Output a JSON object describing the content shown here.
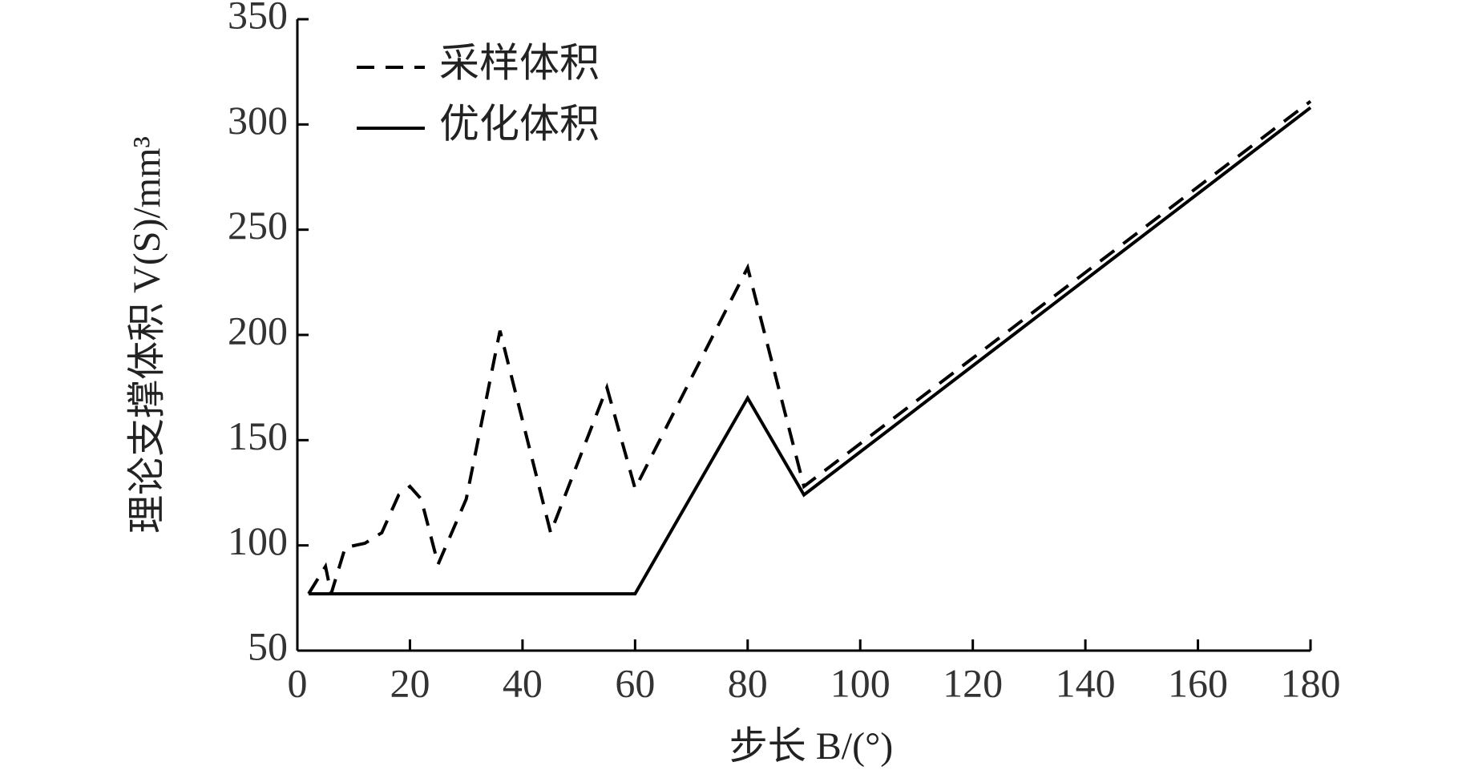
{
  "chart_data": {
    "type": "line",
    "xlabel": "步长 B/(°)",
    "ylabel": "理论支撑体积 V(S)/mm³",
    "xlim": [
      0,
      180
    ],
    "ylim": [
      50,
      350
    ],
    "xticks": [
      0,
      20,
      40,
      60,
      80,
      100,
      120,
      140,
      160,
      180
    ],
    "yticks": [
      50,
      100,
      150,
      200,
      250,
      300,
      350
    ],
    "legend": "upper left",
    "series": [
      {
        "name": "采样体积",
        "color": "#000000",
        "dash": true,
        "x": [
          2,
          5,
          6,
          8.5,
          12,
          15,
          18,
          20,
          22,
          25,
          30,
          36,
          45,
          55,
          60,
          80,
          90,
          180
        ],
        "values": [
          77,
          90,
          77,
          99,
          101,
          106,
          124,
          128,
          122,
          91,
          122,
          202,
          106,
          175,
          127,
          232,
          128,
          311
        ]
      },
      {
        "name": "优化体积",
        "color": "#000000",
        "dash": false,
        "x": [
          2,
          60,
          80,
          90,
          180
        ],
        "values": [
          77,
          77,
          170,
          124,
          308
        ]
      }
    ]
  }
}
